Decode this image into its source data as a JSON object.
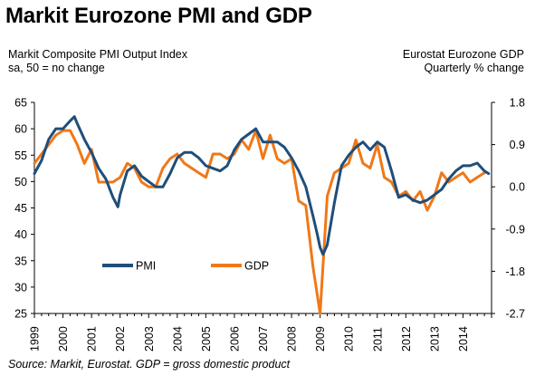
{
  "chart_data": {
    "type": "line",
    "title": "Markit Eurozone PMI and GDP",
    "left_axis": {
      "title_lines": [
        "Markit Composite PMI Output Index",
        "sa, 50 = no change"
      ],
      "ylim": [
        25,
        65
      ],
      "ticks": [
        25,
        30,
        35,
        40,
        45,
        50,
        55,
        60,
        65
      ]
    },
    "right_axis": {
      "title_lines": [
        "Eurostat Eurozone GDP",
        "Quarterly % change"
      ],
      "ylim": [
        -2.7,
        1.8
      ],
      "ticks": [
        -2.7,
        -1.8,
        -0.9,
        0.0,
        0.9,
        1.8
      ],
      "tick_labels": [
        "-2.7",
        "-1.8",
        "-0.9",
        "0.0",
        "0.9",
        "1.8"
      ]
    },
    "x_ticks": [
      "1999",
      "2000",
      "2001",
      "2002",
      "2003",
      "2004",
      "2005",
      "2006",
      "2007",
      "2008",
      "2009",
      "2010",
      "2011",
      "2012",
      "2013",
      "2014"
    ],
    "x_range": [
      1999.0,
      2015.0
    ],
    "grid": false,
    "legend": "lower-left",
    "series": [
      {
        "name": "PMI",
        "axis": "left",
        "color": "#1f4e79",
        "x": [
          1999.0,
          1999.25,
          1999.5,
          1999.75,
          2000.0,
          2000.25,
          2000.4,
          2000.5,
          2000.75,
          2001.0,
          2001.25,
          2001.5,
          2001.75,
          2001.92,
          2002.0,
          2002.25,
          2002.5,
          2002.75,
          2003.0,
          2003.25,
          2003.5,
          2003.75,
          2004.0,
          2004.25,
          2004.5,
          2004.75,
          2005.0,
          2005.25,
          2005.5,
          2005.75,
          2006.0,
          2006.25,
          2006.5,
          2006.75,
          2007.0,
          2007.25,
          2007.5,
          2007.75,
          2008.0,
          2008.25,
          2008.5,
          2008.75,
          2008.9,
          2009.0,
          2009.1,
          2009.25,
          2009.5,
          2009.75,
          2010.0,
          2010.25,
          2010.5,
          2010.75,
          2011.0,
          2011.25,
          2011.5,
          2011.75,
          2012.0,
          2012.25,
          2012.5,
          2012.75,
          2013.0,
          2013.25,
          2013.5,
          2013.75,
          2014.0,
          2014.25,
          2014.5,
          2014.75,
          2014.9
        ],
        "values": [
          51.5,
          54.0,
          58.0,
          60.0,
          60.0,
          61.5,
          62.3,
          61.0,
          58.0,
          55.5,
          52.5,
          50.5,
          47.0,
          45.2,
          47.5,
          52.0,
          53.0,
          51.0,
          50.0,
          49.0,
          49.0,
          51.5,
          54.5,
          55.5,
          55.5,
          54.5,
          53.0,
          52.5,
          52.0,
          53.0,
          56.0,
          58.0,
          59.0,
          60.0,
          57.5,
          57.5,
          57.5,
          56.5,
          54.5,
          52.0,
          49.0,
          43.5,
          40.0,
          37.5,
          36.2,
          38.0,
          46.0,
          53.0,
          55.0,
          56.5,
          57.5,
          56.0,
          57.5,
          56.5,
          52.0,
          47.0,
          47.5,
          46.5,
          46.0,
          46.5,
          47.5,
          48.5,
          50.5,
          52.0,
          53.0,
          53.0,
          53.5,
          52.0,
          51.5
        ]
      },
      {
        "name": "GDP",
        "axis": "right",
        "color": "#f07818",
        "x": [
          1999.0,
          1999.25,
          1999.5,
          1999.75,
          2000.0,
          2000.25,
          2000.5,
          2000.75,
          2001.0,
          2001.25,
          2001.5,
          2001.75,
          2002.0,
          2002.25,
          2002.5,
          2002.75,
          2003.0,
          2003.25,
          2003.5,
          2003.75,
          2004.0,
          2004.25,
          2004.5,
          2004.75,
          2005.0,
          2005.25,
          2005.5,
          2005.75,
          2006.0,
          2006.25,
          2006.5,
          2006.75,
          2007.0,
          2007.25,
          2007.5,
          2007.75,
          2008.0,
          2008.25,
          2008.5,
          2008.75,
          2009.0,
          2009.25,
          2009.5,
          2009.75,
          2010.0,
          2010.25,
          2010.5,
          2010.75,
          2011.0,
          2011.25,
          2011.5,
          2011.75,
          2012.0,
          2012.25,
          2012.5,
          2012.75,
          2013.0,
          2013.25,
          2013.5,
          2013.75,
          2014.0,
          2014.25,
          2014.5,
          2014.75
        ],
        "values": [
          0.5,
          0.7,
          0.9,
          1.1,
          1.2,
          1.2,
          0.9,
          0.5,
          0.8,
          0.1,
          0.1,
          0.1,
          0.2,
          0.5,
          0.4,
          0.1,
          0.0,
          0.0,
          0.4,
          0.6,
          0.7,
          0.5,
          0.4,
          0.3,
          0.2,
          0.7,
          0.7,
          0.6,
          0.7,
          1.0,
          0.8,
          1.2,
          0.6,
          1.1,
          0.6,
          0.5,
          0.6,
          -0.3,
          -0.4,
          -1.7,
          -2.7,
          -0.2,
          0.3,
          0.4,
          0.5,
          1.0,
          0.5,
          0.4,
          0.9,
          0.2,
          0.1,
          -0.2,
          -0.1,
          -0.3,
          -0.1,
          -0.5,
          -0.2,
          0.3,
          0.1,
          0.2,
          0.3,
          0.1,
          0.2,
          0.3
        ]
      }
    ],
    "source": "Source: Markit, Eurostat. GDP = gross domestic product"
  }
}
